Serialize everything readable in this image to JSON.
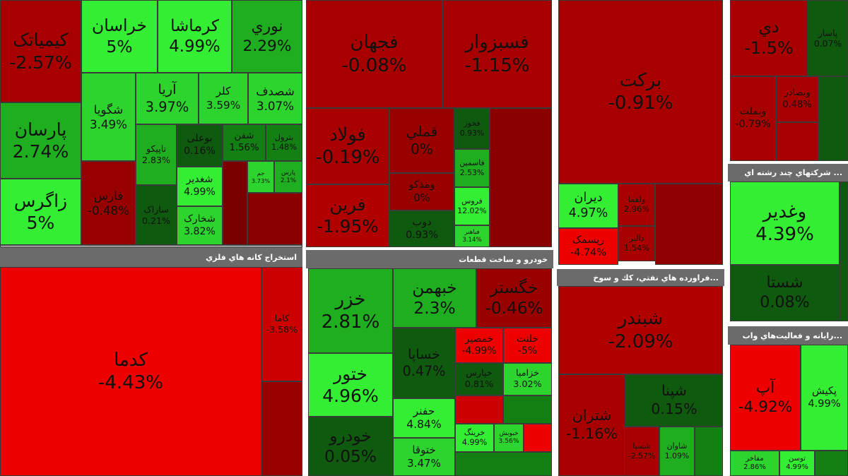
{
  "groups": [
    {
      "tiles": [
        {
          "name": "کیمیاتک",
          "change": "-2.57%"
        },
        {
          "name": "پارسان",
          "change": "2.74%"
        },
        {
          "name": "زاگرس",
          "change": "5%"
        },
        {
          "name": "خراسان",
          "change": "5%"
        },
        {
          "name": "کرماشا",
          "change": "4.99%"
        },
        {
          "name": "نوري",
          "change": "2.29%"
        },
        {
          "name": "شگویا",
          "change": "3.49%"
        },
        {
          "name": "آریا",
          "change": "3.97%"
        },
        {
          "name": "کلر",
          "change": "3.59%"
        },
        {
          "name": "شصدف",
          "change": "3.07%"
        },
        {
          "name": "فارس",
          "change": "-0.48%"
        },
        {
          "name": "تاپیکو",
          "change": "2.83%"
        },
        {
          "name": "بوعلی",
          "change": "0.16%"
        },
        {
          "name": "شفن",
          "change": "1.56%"
        },
        {
          "name": "بترول",
          "change": "1.48%"
        },
        {
          "name": "ساراک",
          "change": "0.21%"
        },
        {
          "name": "شغدیر",
          "change": "4.99%"
        },
        {
          "name": "شخارک",
          "change": "3.82%"
        },
        {
          "name": "جم",
          "change": "3.73%"
        },
        {
          "name": "پارس",
          "change": "2.1%"
        }
      ]
    },
    {
      "title": "استخراج کانه هاي فلزي",
      "tiles": [
        {
          "name": "کدما",
          "change": "-4.43%"
        },
        {
          "name": "کاما",
          "change": "-3.58%"
        }
      ]
    },
    {
      "tiles": [
        {
          "name": "فجهان",
          "change": "-0.08%"
        },
        {
          "name": "فسبزوار",
          "change": "-1.15%"
        },
        {
          "name": "فولاد",
          "change": "-0.19%"
        },
        {
          "name": "قملي",
          "change": "0%"
        },
        {
          "name": "فرین",
          "change": "-1.95%"
        },
        {
          "name": "ومذکو",
          "change": "0%"
        },
        {
          "name": "دوب",
          "change": "0.93%"
        },
        {
          "name": "فخوز",
          "change": "0.93%"
        },
        {
          "name": "فاسمین",
          "change": "2.53%"
        },
        {
          "name": "فروس",
          "change": "12.02%"
        },
        {
          "name": "فباهنر",
          "change": "3.14%"
        }
      ]
    },
    {
      "title": "خودرو و ساخت قطعات",
      "tiles": [
        {
          "name": "خزر",
          "change": "2.81%"
        },
        {
          "name": "خبهمن",
          "change": "2.3%"
        },
        {
          "name": "خگستر",
          "change": "-0.46%"
        },
        {
          "name": "ختور",
          "change": "4.96%"
        },
        {
          "name": "خساپا",
          "change": "0.47%"
        },
        {
          "name": "خودرو",
          "change": "0.05%"
        },
        {
          "name": "حفنر",
          "change": "4.84%"
        },
        {
          "name": "ختوقا",
          "change": "3.47%"
        },
        {
          "name": "خمصیر",
          "change": "-4.99%"
        },
        {
          "name": "خلنت",
          "change": "-5%"
        },
        {
          "name": "خپارس",
          "change": "0.81%"
        },
        {
          "name": "خزامیا",
          "change": "3.02%"
        },
        {
          "name": "خرینگ",
          "change": "4.99%"
        },
        {
          "name": "خبوبش",
          "change": "3.56%"
        }
      ]
    },
    {
      "tiles": [
        {
          "name": "برکت",
          "change": "-0.91%"
        },
        {
          "name": "دیران",
          "change": "4.97%"
        },
        {
          "name": "ریسمک",
          "change": "-4.74%"
        },
        {
          "name": "ولقما",
          "change": "2.96%"
        },
        {
          "name": "دالبر",
          "change": "1.54%"
        }
      ]
    },
    {
      "title": "...فراورده هاي نفتي، كك و سوخ",
      "tiles": [
        {
          "name": "شبندر",
          "change": "-2.09%"
        },
        {
          "name": "شپنا",
          "change": "0.15%"
        },
        {
          "name": "شتران",
          "change": "-1.16%"
        },
        {
          "name": "شاوان",
          "change": "1.09%"
        },
        {
          "name": "شسپا",
          "change": "-2.57%"
        }
      ]
    },
    {
      "tiles": [
        {
          "name": "دي",
          "change": "-1.5%"
        },
        {
          "name": "پاسار",
          "change": "0.07%"
        },
        {
          "name": "وبملت",
          "change": "-0.79%"
        },
        {
          "name": "وبصادر",
          "change": "0.48%"
        }
      ]
    },
    {
      "title": "... شرکتهاي چند رشته اي",
      "tiles": [
        {
          "name": "وغدیر",
          "change": "4.39%"
        },
        {
          "name": "شستا",
          "change": "0.08%"
        }
      ]
    },
    {
      "title": "...رايانه و فعاليت‌هاي واب",
      "tiles": [
        {
          "name": "آپ",
          "change": "-4.92%"
        },
        {
          "name": "پکیش",
          "change": "4.99%"
        },
        {
          "name": "مفاخر",
          "change": "2.86%"
        },
        {
          "name": "توسن",
          "change": "4.99%"
        }
      ]
    }
  ]
}
